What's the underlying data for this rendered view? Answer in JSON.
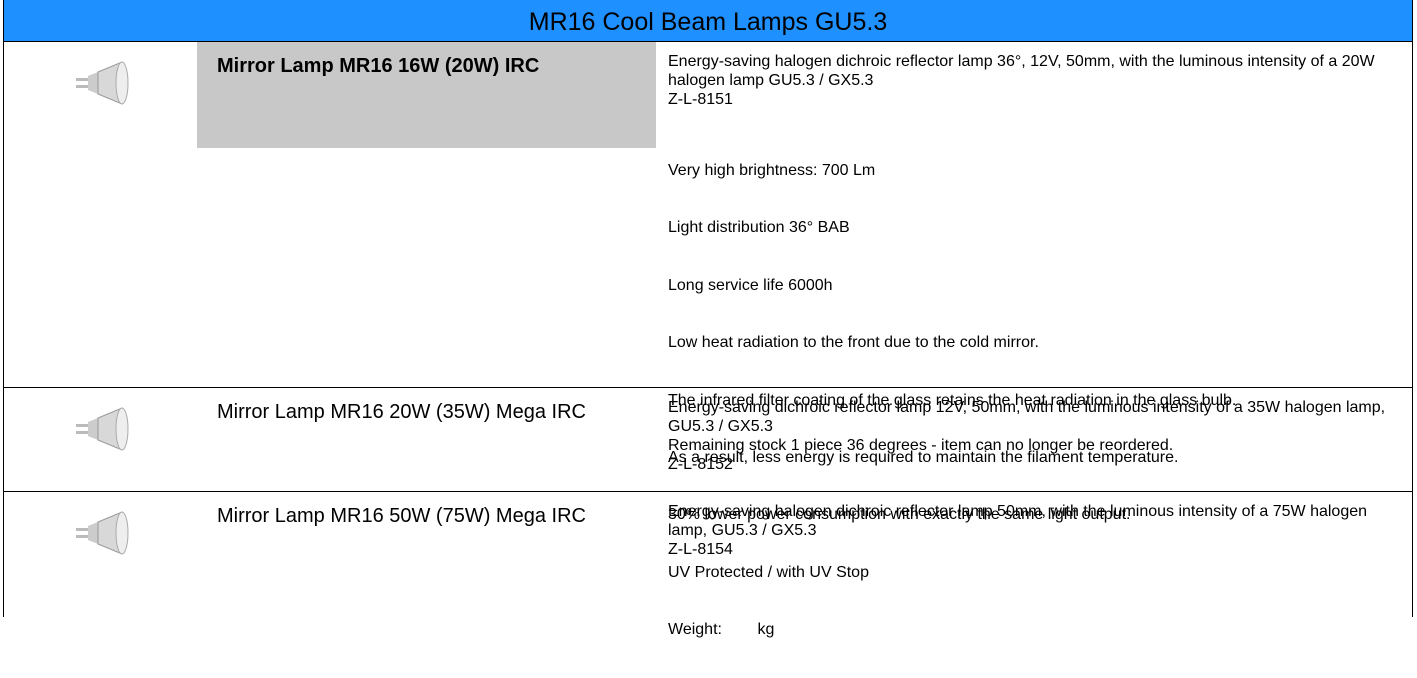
{
  "header": {
    "title": "MR16 Cool Beam Lamps GU5.3"
  },
  "products": [
    {
      "name": "Mirror Lamp MR16  16W (20W) IRC",
      "description": [
        "Energy-saving halogen dichroic reflector lamp 36°, 12V, 50mm, with the luminous intensity of a 20W halogen lamp GU5.3 / GX5.3",
        "Z-L-8151"
      ],
      "details": [
        "Very high brightness: 700 Lm",
        "Light distribution 36° BAB",
        "Long service life 6000h",
        "Low heat radiation to the front due to the cold mirror.",
        "The infrared filter coating of the glass retains the heat radiation in the glass bulb.",
        "As a result, less energy is required to maintain the filament temperature.",
        "30% lower power consumption with exactly the same light output.",
        "UV Protected / with UV Stop",
        "Weight:        kg"
      ]
    },
    {
      "name": "Mirror Lamp MR16 20W (35W) Mega IRC",
      "description": [
        "Energy-saving dichroic reflector lamp 12V, 50mm, with the luminous intensity of a 35W halogen lamp, GU5.3 / GX5.3",
        "Remaining stock 1 piece 36 degrees - item can no longer be reordered.",
        "Z-L-8152"
      ]
    },
    {
      "name": "Mirror Lamp MR16 50W (75W) Mega IRC",
      "description": [
        "Energy-saving halogen dichroic reflector lamp 50mm, with the luminous intensity of a 75W halogen lamp, GU5.3 / GX5.3",
        "Z-L-8154"
      ]
    }
  ]
}
